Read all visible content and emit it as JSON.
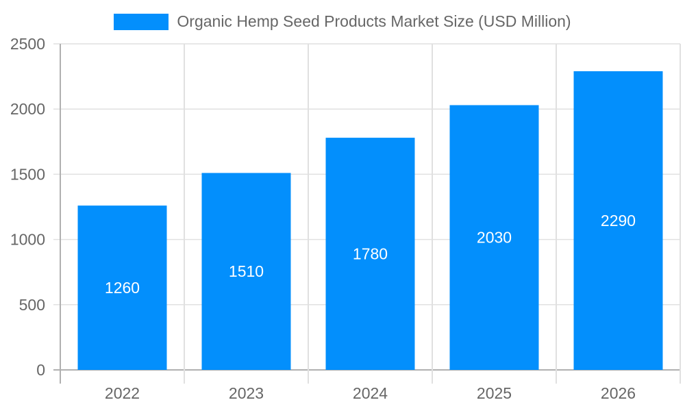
{
  "chart_data": {
    "type": "bar",
    "title": "",
    "categories": [
      "2022",
      "2023",
      "2024",
      "2025",
      "2026"
    ],
    "series": [
      {
        "name": "Organic Hemp Seed Products Market Size (USD Million)",
        "values": [
          1260,
          1510,
          1780,
          2030,
          2290
        ],
        "color": "#038ffc"
      }
    ],
    "xlabel": "",
    "ylabel": "",
    "ylim": [
      0,
      2500
    ],
    "yticks": [
      0,
      500,
      1000,
      1500,
      2000,
      2500
    ],
    "grid": true,
    "legend_position": "top",
    "data_labels": true
  },
  "legend": {
    "label": "Organic Hemp Seed Products Market Size (USD Million)",
    "color": "#038ffc"
  }
}
